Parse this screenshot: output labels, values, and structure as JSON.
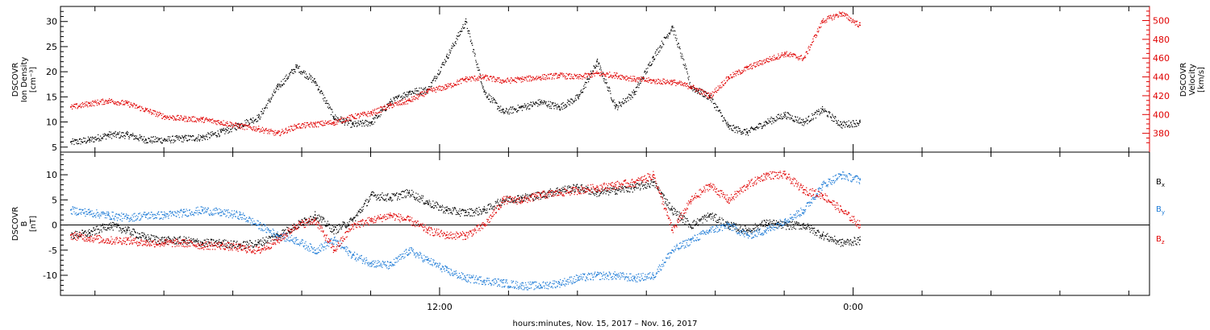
{
  "chart_data": [
    {
      "type": "scatter",
      "panel": "top",
      "ylabel_left": [
        "DSCOVR",
        "Ion Density",
        "[cm⁻³]"
      ],
      "ylabel_right": [
        "DSCOVR",
        "Velocity",
        "[km/s]"
      ],
      "ylim_left": [
        4,
        33
      ],
      "ylim_right": [
        360,
        515
      ],
      "yticks_left": [
        "5",
        "10",
        "15",
        "20",
        "25",
        "30"
      ],
      "yticks_right": [
        "380",
        "400",
        "420",
        "440",
        "460",
        "480",
        "500"
      ],
      "right_axis_color": "#e00000",
      "grid": false,
      "series": [
        {
          "axis": "left",
          "color": "#000000",
          "points": [
            [
              0,
              6
            ],
            [
              1,
              6.5
            ],
            [
              2,
              7.5
            ],
            [
              3,
              7.5
            ],
            [
              4,
              6.5
            ],
            [
              5,
              6.5
            ],
            [
              6,
              6.8
            ],
            [
              7,
              7
            ],
            [
              8,
              8
            ],
            [
              9,
              9.5
            ],
            [
              10,
              11
            ],
            [
              11,
              17
            ],
            [
              12,
              21
            ],
            [
              13,
              18
            ],
            [
              14,
              11
            ],
            [
              15,
              9.5
            ],
            [
              16,
              10
            ],
            [
              17,
              14
            ],
            [
              18,
              16
            ],
            [
              19,
              16.5
            ],
            [
              20,
              23
            ],
            [
              21,
              30
            ],
            [
              22,
              16
            ],
            [
              23,
              12
            ],
            [
              24,
              13
            ],
            [
              25,
              14
            ],
            [
              26,
              13
            ],
            [
              27,
              15
            ],
            [
              28,
              22
            ],
            [
              29,
              13
            ],
            [
              30,
              16
            ],
            [
              31,
              23
            ],
            [
              32,
              29
            ],
            [
              33,
              17
            ],
            [
              34,
              15
            ],
            [
              35,
              9
            ],
            [
              36,
              8
            ],
            [
              37,
              10
            ],
            [
              38,
              11.5
            ],
            [
              39,
              10
            ],
            [
              40,
              12.5
            ],
            [
              41,
              9.5
            ],
            [
              42,
              10
            ]
          ]
        },
        {
          "axis": "right",
          "color": "#e00000",
          "points": [
            [
              0,
              408
            ],
            [
              1,
              412
            ],
            [
              2,
              415
            ],
            [
              3,
              412
            ],
            [
              4,
              405
            ],
            [
              5,
              398
            ],
            [
              6,
              396
            ],
            [
              7,
              395
            ],
            [
              8,
              392
            ],
            [
              9,
              388
            ],
            [
              10,
              385
            ],
            [
              11,
              380
            ],
            [
              12,
              388
            ],
            [
              13,
              390
            ],
            [
              14,
              392
            ],
            [
              15,
              398
            ],
            [
              16,
              402
            ],
            [
              17,
              410
            ],
            [
              18,
              415
            ],
            [
              19,
              425
            ],
            [
              20,
              430
            ],
            [
              21,
              438
            ],
            [
              22,
              440
            ],
            [
              23,
              436
            ],
            [
              24,
              438
            ],
            [
              25,
              440
            ],
            [
              26,
              442
            ],
            [
              27,
              440
            ],
            [
              28,
              444
            ],
            [
              29,
              442
            ],
            [
              30,
              438
            ],
            [
              31,
              436
            ],
            [
              32,
              435
            ],
            [
              33,
              430
            ],
            [
              34,
              420
            ],
            [
              35,
              440
            ],
            [
              36,
              450
            ],
            [
              37,
              458
            ],
            [
              38,
              465
            ],
            [
              39,
              460
            ],
            [
              40,
              500
            ],
            [
              41,
              508
            ],
            [
              42,
              495
            ]
          ]
        }
      ]
    },
    {
      "type": "scatter",
      "panel": "bottom",
      "ylabel_left": [
        "DSCOVR",
        "B",
        "[nT]"
      ],
      "ylim": [
        -14,
        14.5
      ],
      "yticks": [
        "-10",
        "-5",
        "0",
        "5",
        "10"
      ],
      "zero_line": true,
      "grid": false,
      "legend": [
        {
          "label": "B",
          "sub": "x",
          "color": "#000000"
        },
        {
          "label": "B",
          "sub": "y",
          "color": "#1c7ad6"
        },
        {
          "label": "B",
          "sub": "z",
          "color": "#e00000"
        }
      ],
      "series": [
        {
          "name": "Bx",
          "color": "#000000",
          "points": [
            [
              0,
              -2
            ],
            [
              1,
              -1.5
            ],
            [
              2,
              0
            ],
            [
              3,
              -1
            ],
            [
              4,
              -2.5
            ],
            [
              5,
              -3
            ],
            [
              6,
              -3
            ],
            [
              7,
              -3.5
            ],
            [
              8,
              -3.5
            ],
            [
              9,
              -4
            ],
            [
              10,
              -3.5
            ],
            [
              11,
              -2
            ],
            [
              12,
              0
            ],
            [
              13,
              2
            ],
            [
              14,
              -1
            ],
            [
              15,
              1
            ],
            [
              16,
              6
            ],
            [
              17,
              5.5
            ],
            [
              18,
              6.5
            ],
            [
              19,
              4.5
            ],
            [
              20,
              3
            ],
            [
              21,
              2.5
            ],
            [
              22,
              3
            ],
            [
              23,
              5
            ],
            [
              24,
              5.5
            ],
            [
              25,
              6
            ],
            [
              26,
              7
            ],
            [
              27,
              7.5
            ],
            [
              28,
              6.5
            ],
            [
              29,
              7
            ],
            [
              30,
              7.5
            ],
            [
              31,
              8.5
            ],
            [
              32,
              3
            ],
            [
              33,
              0
            ],
            [
              34,
              2
            ],
            [
              35,
              0
            ],
            [
              36,
              -1
            ],
            [
              37,
              0.5
            ],
            [
              38,
              0
            ],
            [
              39,
              0
            ],
            [
              40,
              -2
            ],
            [
              41,
              -3.5
            ],
            [
              42,
              -3
            ]
          ]
        },
        {
          "name": "By",
          "color": "#1c7ad6",
          "points": [
            [
              0,
              3
            ],
            [
              1,
              2.5
            ],
            [
              2,
              2
            ],
            [
              3,
              1.5
            ],
            [
              4,
              2
            ],
            [
              5,
              2
            ],
            [
              6,
              2.5
            ],
            [
              7,
              3
            ],
            [
              8,
              2.5
            ],
            [
              9,
              2
            ],
            [
              10,
              0
            ],
            [
              11,
              -2
            ],
            [
              12,
              -3
            ],
            [
              13,
              -5
            ],
            [
              14,
              -3
            ],
            [
              15,
              -6
            ],
            [
              16,
              -7.5
            ],
            [
              17,
              -8
            ],
            [
              18,
              -5
            ],
            [
              19,
              -7
            ],
            [
              20,
              -9
            ],
            [
              21,
              -10.5
            ],
            [
              22,
              -11
            ],
            [
              23,
              -11.5
            ],
            [
              24,
              -12
            ],
            [
              25,
              -12
            ],
            [
              26,
              -11.5
            ],
            [
              27,
              -10.5
            ],
            [
              28,
              -10
            ],
            [
              29,
              -10
            ],
            [
              30,
              -10.5
            ],
            [
              31,
              -10
            ],
            [
              32,
              -5
            ],
            [
              33,
              -3
            ],
            [
              34,
              -1
            ],
            [
              35,
              0
            ],
            [
              36,
              -2
            ],
            [
              37,
              -1
            ],
            [
              38,
              1
            ],
            [
              39,
              3
            ],
            [
              40,
              8
            ],
            [
              41,
              10
            ],
            [
              42,
              9
            ]
          ]
        },
        {
          "name": "Bz",
          "color": "#e00000",
          "points": [
            [
              0,
              -2
            ],
            [
              1,
              -2.5
            ],
            [
              2,
              -3
            ],
            [
              3,
              -3
            ],
            [
              4,
              -3.5
            ],
            [
              5,
              -3.5
            ],
            [
              6,
              -3.5
            ],
            [
              7,
              -4
            ],
            [
              8,
              -4
            ],
            [
              9,
              -4.5
            ],
            [
              10,
              -5
            ],
            [
              11,
              -3
            ],
            [
              12,
              0
            ],
            [
              13,
              1
            ],
            [
              14,
              -5
            ],
            [
              15,
              0
            ],
            [
              16,
              1
            ],
            [
              17,
              2
            ],
            [
              18,
              1
            ],
            [
              19,
              -1
            ],
            [
              20,
              -2
            ],
            [
              21,
              -2
            ],
            [
              22,
              0
            ],
            [
              23,
              5
            ],
            [
              24,
              5
            ],
            [
              25,
              6
            ],
            [
              26,
              6.5
            ],
            [
              27,
              7
            ],
            [
              28,
              7.5
            ],
            [
              29,
              8
            ],
            [
              30,
              8.5
            ],
            [
              31,
              10
            ],
            [
              32,
              -1
            ],
            [
              33,
              5
            ],
            [
              34,
              8
            ],
            [
              35,
              5
            ],
            [
              36,
              8
            ],
            [
              37,
              10
            ],
            [
              38,
              10
            ],
            [
              39,
              7
            ],
            [
              40,
              6
            ],
            [
              41,
              3
            ],
            [
              42,
              0
            ]
          ]
        }
      ]
    }
  ],
  "x_axis": {
    "tick_labels": [
      {
        "label": "12:00",
        "hour": 12
      },
      {
        "label": "0:00",
        "hour": 24
      }
    ],
    "title": "hours:minutes, Nov. 15, 2017 – Nov. 16, 2017"
  }
}
